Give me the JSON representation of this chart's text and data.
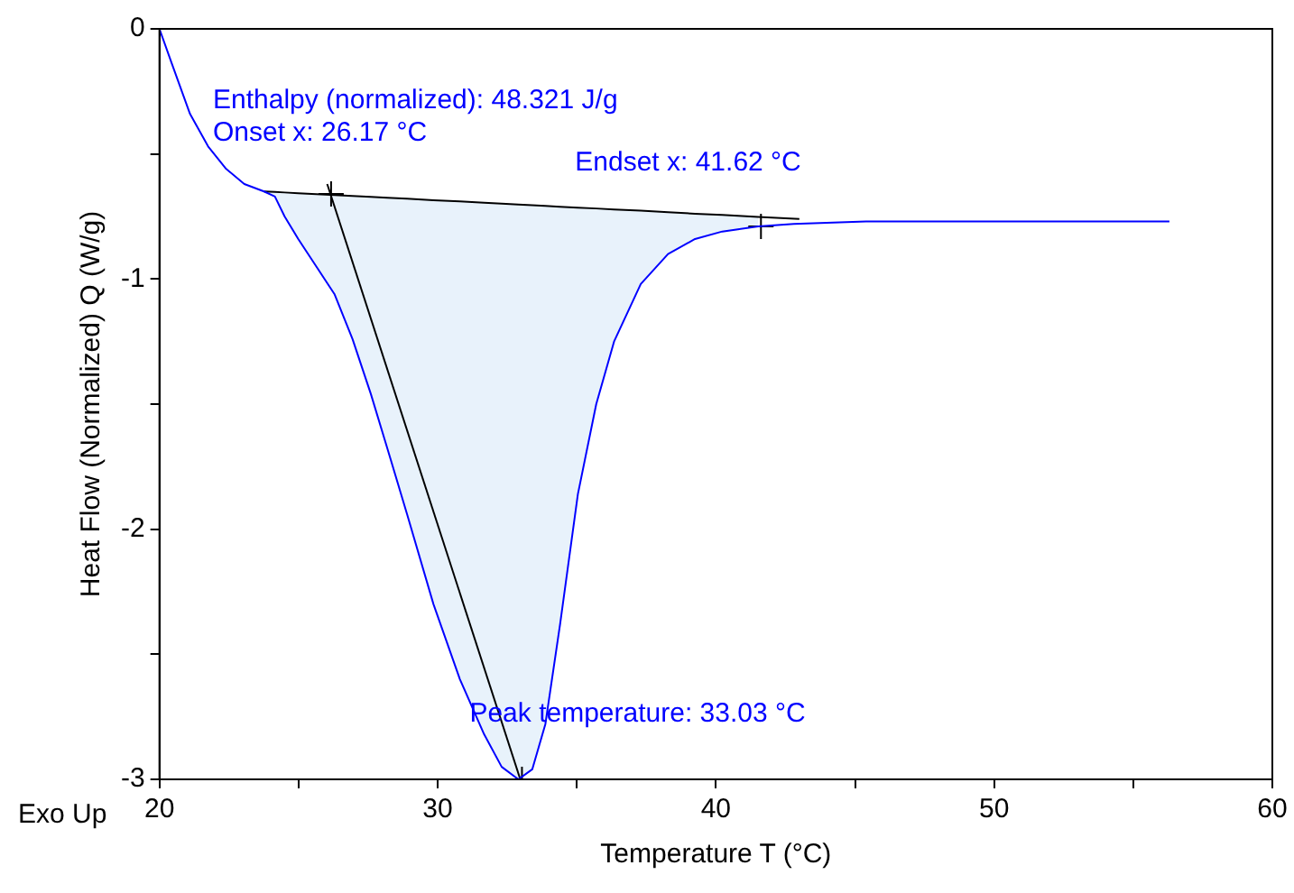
{
  "chart_data": {
    "type": "line",
    "xlabel": "Temperature T (°C)",
    "ylabel": "Heat Flow (Normalized) Q (W/g)",
    "xlim": [
      20,
      60
    ],
    "xticks": [
      20,
      {
        "value": 25,
        "label": null
      },
      30,
      {
        "value": 35,
        "label": null
      },
      40,
      {
        "value": 45,
        "label": null
      },
      50,
      {
        "value": 55,
        "label": null
      },
      60
    ],
    "ylim": [
      -3,
      0
    ],
    "yticks": [
      -3,
      {
        "value": -2.5,
        "label": null
      },
      -2,
      {
        "value": -1.5,
        "label": null
      },
      -1,
      {
        "value": -0.5,
        "label": null
      },
      0
    ],
    "grid": false,
    "legend": false,
    "series": [
      {
        "type": "line",
        "color": "#0000ff",
        "x": [
          20,
          20.45,
          21.1,
          21.75,
          22.4,
          23.05,
          23.76,
          24.15,
          24.5,
          24.99,
          25.64,
          26.29,
          26.94,
          27.6,
          28.2,
          28.9,
          29.85,
          30.8,
          31.67,
          32.3,
          32.9,
          33.4,
          33.87,
          34.4,
          35.04,
          35.7,
          36.34,
          37.3,
          38.28,
          39.25,
          40.23,
          41.52,
          42.8,
          45.4,
          50.6,
          56.3
        ],
        "values": [
          0,
          -0.14,
          -0.34,
          -0.47,
          -0.56,
          -0.62,
          -0.65,
          -0.67,
          -0.75,
          -0.84,
          -0.95,
          -1.06,
          -1.24,
          -1.46,
          -1.68,
          -1.94,
          -2.3,
          -2.6,
          -2.82,
          -2.95,
          -3,
          -2.96,
          -2.78,
          -2.38,
          -1.86,
          -1.5,
          -1.25,
          -1.02,
          -0.9,
          -0.84,
          -0.81,
          -0.79,
          -0.78,
          -0.77,
          -0.77,
          -0.77
        ]
      },
      {
        "type": "line",
        "color": "#000000",
        "x": [
          23.76,
          24.15,
          24.5,
          24.99,
          25.64,
          26.29,
          26.94,
          27.6,
          28.2,
          28.9,
          29.85,
          30.8,
          31.67,
          32.3,
          32.9,
          33.4,
          33.87,
          34.4,
          35.04,
          35.7,
          36.34,
          37.3,
          38.28,
          39.25,
          40.23,
          41.52,
          43
        ],
        "values": [
          -0.65,
          -0.652,
          -0.654,
          -0.657,
          -0.661,
          -0.664,
          -0.668,
          -0.672,
          -0.675,
          -0.679,
          -0.685,
          -0.69,
          -0.695,
          -0.699,
          -0.702,
          -0.705,
          -0.708,
          -0.711,
          -0.715,
          -0.718,
          -0.722,
          -0.727,
          -0.733,
          -0.739,
          -0.744,
          -0.752,
          -0.76
        ],
        "upper": [
          -0.65,
          -0.652,
          -0.654,
          -0.657,
          -0.661,
          -0.664,
          -0.668,
          -0.672,
          -0.675,
          -0.679,
          -0.685,
          -0.69,
          -0.695,
          -0.699,
          -0.702,
          -0.705,
          -0.708,
          -0.711,
          -0.715,
          -0.718,
          -0.722,
          -0.727,
          -0.733,
          -0.739,
          -0.744,
          -0.752,
          null
        ],
        "lower": [
          -0.65,
          -0.67,
          -0.75,
          -0.84,
          -0.95,
          -1.06,
          -1.24,
          -1.46,
          -1.68,
          -1.94,
          -2.3,
          -2.6,
          -2.82,
          -2.95,
          -3,
          -2.96,
          -2.78,
          -2.38,
          -1.86,
          -1.5,
          -1.25,
          -1.02,
          -0.9,
          -0.84,
          -0.81,
          -0.79,
          null
        ]
      },
      {
        "type": "line",
        "color": "#000000",
        "x": [
          26.03,
          32.97
        ],
        "values": [
          -0.62,
          -3
        ]
      },
      {
        "type": "scatter",
        "color": "#000000",
        "marker": "cross",
        "x": [
          26.17,
          41.62,
          33.03
        ],
        "values": [
          -0.66,
          -0.79,
          -3
        ]
      }
    ],
    "annotations": [
      "Enthalpy (normalized): 48.321 J/g",
      "Onset x: 26.17 °C",
      {
        "text": "Endset x: 41.62 °C",
        "x": 41.62,
        "y": -0.79
      },
      {
        "text": "Peak temperature: 33.03 °C",
        "x": 33.03,
        "y": -3
      },
      "Exo Up"
    ]
  }
}
